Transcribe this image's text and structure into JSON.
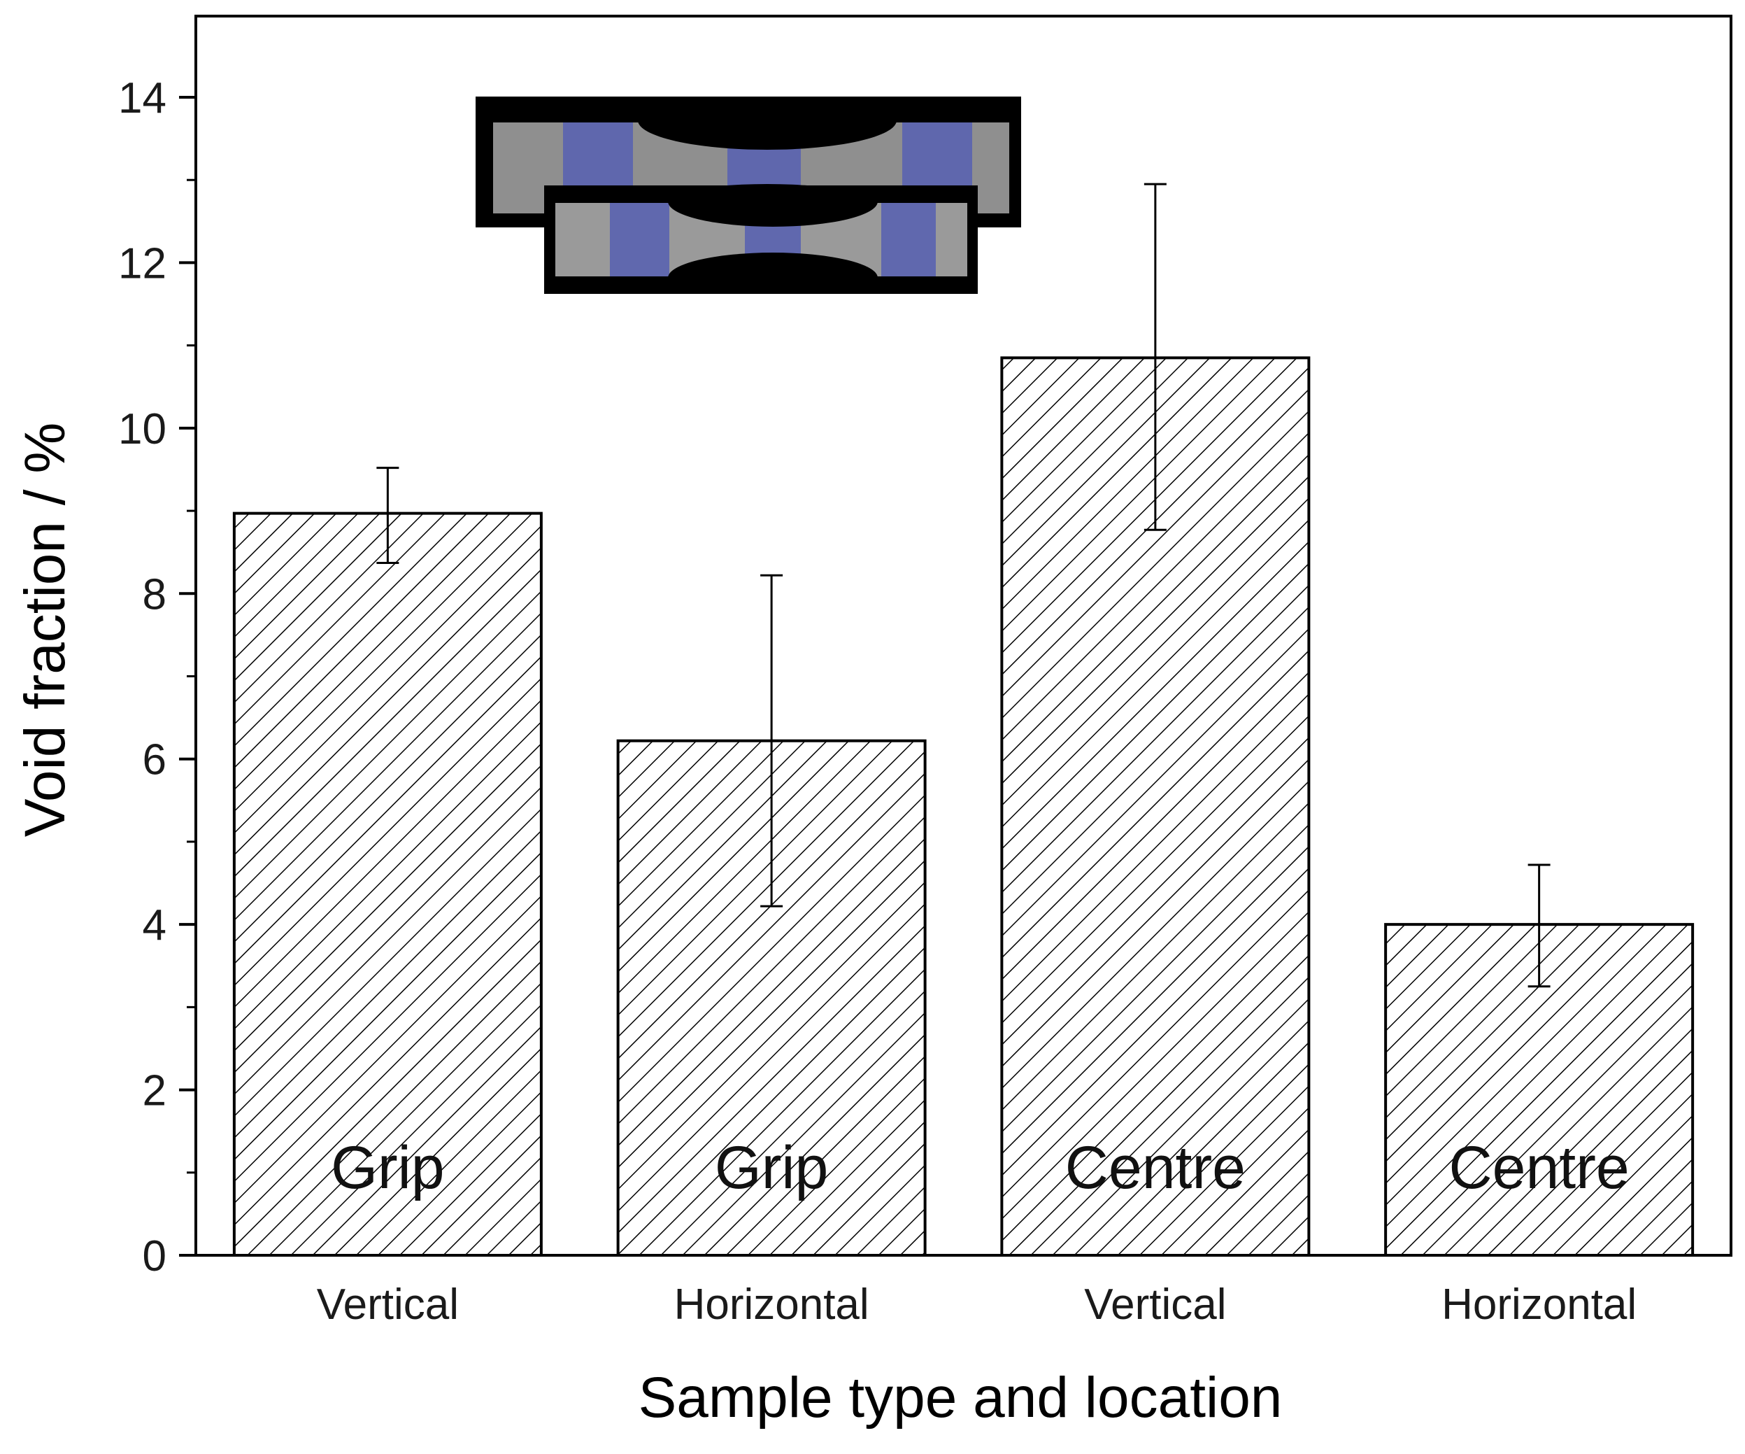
{
  "chart_data": {
    "type": "bar",
    "categories": [
      "Vertical",
      "Horizontal",
      "Vertical",
      "Horizontal"
    ],
    "values": [
      8.97,
      6.22,
      10.85,
      4.0
    ],
    "error_upper": [
      9.52,
      8.22,
      12.95,
      4.72
    ],
    "error_lower": [
      8.37,
      4.22,
      8.77,
      3.25
    ],
    "bar_labels": [
      "Grip",
      "Grip",
      "Centre",
      "Centre"
    ],
    "xlabel": "Sample type and location",
    "ylabel": "Void fraction  / %",
    "ylim": [
      0,
      15
    ],
    "yticks": [
      0,
      2,
      4,
      6,
      8,
      10,
      12,
      14
    ],
    "grid": false,
    "bar_fill": "hatched",
    "inset": "specimen-images"
  },
  "colors": {
    "axis": "#000000",
    "bar_edge": "#000000",
    "hatch": "#000000",
    "specimen_body": "#8a8a8a",
    "specimen_blue": "#5a63b0",
    "inset_frame": "#000000"
  }
}
